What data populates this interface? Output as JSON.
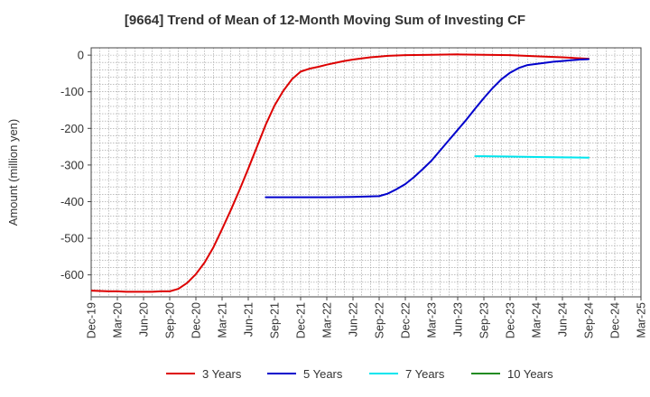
{
  "chart_data": {
    "type": "line",
    "title": "[9664]  Trend of Mean of 12-Month Moving Sum of Investing CF",
    "xlabel": "",
    "ylabel": "Amount (million yen)",
    "ylim": [
      -660,
      20
    ],
    "yticks": [
      0,
      -100,
      -200,
      -300,
      -400,
      -500,
      -600
    ],
    "xticks": [
      "Dec-19",
      "Mar-20",
      "Jun-20",
      "Sep-20",
      "Dec-20",
      "Mar-21",
      "Jun-21",
      "Sep-21",
      "Dec-21",
      "Mar-22",
      "Jun-22",
      "Sep-22",
      "Dec-22",
      "Mar-23",
      "Jun-23",
      "Sep-23",
      "Dec-23",
      "Mar-24",
      "Jun-24",
      "Sep-24",
      "Dec-24",
      "Mar-25"
    ],
    "grid": true,
    "legend_position": "bottom",
    "series": [
      {
        "name": "3 Years",
        "color": "#dd0000",
        "points": [
          [
            "Dec-19",
            -643
          ],
          [
            "Jan-20",
            -644
          ],
          [
            "Feb-20",
            -645
          ],
          [
            "Mar-20",
            -645
          ],
          [
            "Apr-20",
            -646
          ],
          [
            "May-20",
            -646
          ],
          [
            "Jun-20",
            -646
          ],
          [
            "Jul-20",
            -646
          ],
          [
            "Aug-20",
            -645
          ],
          [
            "Sep-20",
            -645
          ],
          [
            "Oct-20",
            -638
          ],
          [
            "Nov-20",
            -622
          ],
          [
            "Dec-20",
            -598
          ],
          [
            "Jan-21",
            -566
          ],
          [
            "Feb-21",
            -525
          ],
          [
            "Mar-21",
            -475
          ],
          [
            "Apr-21",
            -423
          ],
          [
            "May-21",
            -368
          ],
          [
            "Jun-21",
            -310
          ],
          [
            "Jul-21",
            -250
          ],
          [
            "Aug-21",
            -190
          ],
          [
            "Sep-21",
            -138
          ],
          [
            "Oct-21",
            -98
          ],
          [
            "Nov-21",
            -66
          ],
          [
            "Dec-21",
            -45
          ],
          [
            "Jan-22",
            -37
          ],
          [
            "Feb-22",
            -32
          ],
          [
            "Mar-22",
            -26
          ],
          [
            "Apr-22",
            -21
          ],
          [
            "May-22",
            -16
          ],
          [
            "Jun-22",
            -12
          ],
          [
            "Jul-22",
            -9
          ],
          [
            "Aug-22",
            -6
          ],
          [
            "Sep-22",
            -4
          ],
          [
            "Oct-22",
            -2
          ],
          [
            "Nov-22",
            -1
          ],
          [
            "Dec-22",
            0
          ],
          [
            "Mar-23",
            1
          ],
          [
            "Jun-23",
            2
          ],
          [
            "Sep-23",
            1
          ],
          [
            "Dec-23",
            0
          ],
          [
            "Mar-24",
            -3
          ],
          [
            "Jun-24",
            -6
          ],
          [
            "Sep-24",
            -10
          ]
        ]
      },
      {
        "name": "5 Years",
        "color": "#0000cc",
        "points": [
          [
            "Aug-21",
            -388
          ],
          [
            "Sep-21",
            -388
          ],
          [
            "Dec-21",
            -388
          ],
          [
            "Mar-22",
            -388
          ],
          [
            "Jun-22",
            -387
          ],
          [
            "Sep-22",
            -385
          ],
          [
            "Oct-22",
            -378
          ],
          [
            "Nov-22",
            -366
          ],
          [
            "Dec-22",
            -352
          ],
          [
            "Jan-23",
            -333
          ],
          [
            "Feb-23",
            -311
          ],
          [
            "Mar-23",
            -288
          ],
          [
            "Apr-23",
            -260
          ],
          [
            "May-23",
            -232
          ],
          [
            "Jun-23",
            -204
          ],
          [
            "Jul-23",
            -176
          ],
          [
            "Aug-23",
            -146
          ],
          [
            "Sep-23",
            -117
          ],
          [
            "Oct-23",
            -90
          ],
          [
            "Nov-23",
            -66
          ],
          [
            "Dec-23",
            -48
          ],
          [
            "Jan-24",
            -35
          ],
          [
            "Feb-24",
            -27
          ],
          [
            "Mar-24",
            -24
          ],
          [
            "Apr-24",
            -21
          ],
          [
            "May-24",
            -18
          ],
          [
            "Jun-24",
            -16
          ],
          [
            "Jul-24",
            -14
          ],
          [
            "Aug-24",
            -12
          ],
          [
            "Sep-24",
            -11
          ]
        ]
      },
      {
        "name": "7 Years",
        "color": "#00e5ee",
        "points": [
          [
            "Aug-23",
            -276
          ],
          [
            "Sep-23",
            -276
          ],
          [
            "Dec-23",
            -277
          ],
          [
            "Mar-24",
            -278
          ],
          [
            "Jun-24",
            -279
          ],
          [
            "Sep-24",
            -280
          ]
        ]
      },
      {
        "name": "10 Years",
        "color": "#228b22",
        "points": []
      }
    ]
  }
}
